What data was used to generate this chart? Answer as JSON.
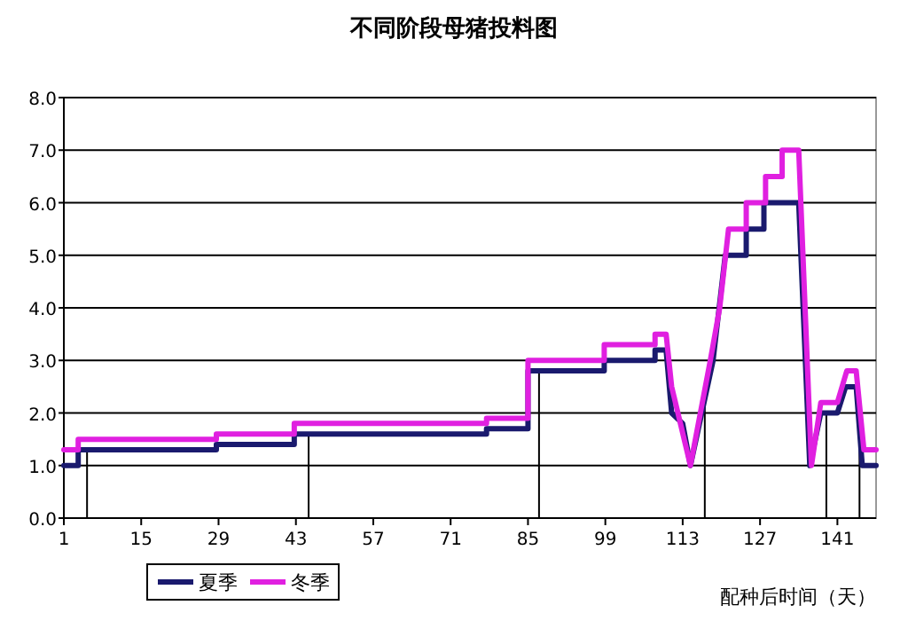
{
  "chart_data": {
    "type": "line",
    "title": "不同阶段母猪投料图",
    "xlabel": "配种后时间（天）",
    "xlim": [
      1,
      148
    ],
    "xticks": [
      1,
      15,
      29,
      43,
      57,
      71,
      85,
      99,
      113,
      127,
      141
    ],
    "ylim": [
      0,
      8
    ],
    "yticks": [
      {
        "value": 0,
        "label": "0.0"
      },
      {
        "value": 1,
        "label": "1.0"
      },
      {
        "value": 2,
        "label": "2.0"
      },
      {
        "value": 3,
        "label": "3.0"
      },
      {
        "value": 4,
        "label": "4.0"
      },
      {
        "value": 5,
        "label": "5.0"
      },
      {
        "value": 6,
        "label": "6.0"
      },
      {
        "value": 7,
        "label": "7.0"
      },
      {
        "value": 8,
        "label": "8.0"
      }
    ],
    "grid": "y",
    "legend": "bottom left",
    "marker": "none",
    "line_style": "solid",
    "series": [
      {
        "name": "夏季",
        "color": "#1a1a6e",
        "x": [
          1,
          3.6,
          3.6,
          28.6,
          28.6,
          42.7,
          42.7,
          77.5,
          77.5,
          85,
          85,
          98.8,
          98.8,
          108,
          108,
          110,
          111,
          113,
          114.4,
          118.5,
          120.7,
          124.5,
          124.5,
          127.7,
          127.7,
          134,
          136,
          138,
          141,
          142.5,
          144.4,
          145.5,
          148
        ],
        "values": [
          1.0,
          1.0,
          1.3,
          1.3,
          1.4,
          1.4,
          1.6,
          1.6,
          1.7,
          1.7,
          2.8,
          2.8,
          3.0,
          3.0,
          3.2,
          3.2,
          2.0,
          1.8,
          1.0,
          3.0,
          5.0,
          5.0,
          5.5,
          5.5,
          6.0,
          6.0,
          1.0,
          2.0,
          2.0,
          2.5,
          2.5,
          1.0,
          1.0
        ]
      },
      {
        "name": "冬季",
        "color": "#e020e0",
        "x": [
          1,
          3.6,
          3.6,
          28.6,
          28.6,
          42.7,
          42.7,
          77.5,
          77.5,
          85,
          85,
          98.8,
          98.8,
          108,
          108,
          110,
          111,
          114.4,
          118,
          119.7,
          121.3,
          124.5,
          124.5,
          128,
          128,
          131,
          131,
          134,
          136.3,
          138,
          141,
          142.7,
          144.4,
          145.8,
          148
        ],
        "values": [
          1.3,
          1.3,
          1.5,
          1.5,
          1.6,
          1.6,
          1.8,
          1.8,
          1.9,
          1.9,
          3.0,
          3.0,
          3.3,
          3.3,
          3.5,
          3.5,
          2.5,
          1.0,
          3.0,
          4.0,
          5.5,
          5.5,
          6.0,
          6.0,
          6.5,
          6.5,
          7.0,
          7.0,
          1.0,
          2.2,
          2.2,
          2.8,
          2.8,
          1.3,
          1.3
        ]
      }
    ],
    "ref_lines": [
      {
        "axis": "x",
        "value": 5.2,
        "color": "#000000"
      },
      {
        "axis": "x",
        "value": 45.3,
        "color": "#000000"
      },
      {
        "axis": "x",
        "value": 87,
        "color": "#000000"
      },
      {
        "axis": "x",
        "value": 117,
        "color": "#000000"
      },
      {
        "axis": "x",
        "value": 139,
        "color": "#000000"
      },
      {
        "axis": "x",
        "value": 145,
        "color": "#000000"
      }
    ]
  }
}
